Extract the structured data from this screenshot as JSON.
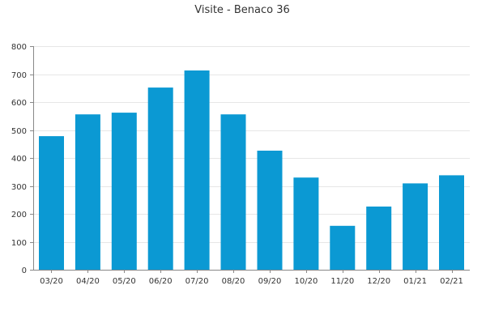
{
  "chart_data": {
    "type": "bar",
    "title": "Visite - Benaco 36",
    "xlabel": "",
    "ylabel": "",
    "categories": [
      "03/20",
      "04/20",
      "05/20",
      "06/20",
      "07/20",
      "08/20",
      "09/20",
      "10/20",
      "11/20",
      "12/20",
      "01/21",
      "02/21"
    ],
    "values": [
      478,
      556,
      562,
      652,
      713,
      556,
      426,
      330,
      157,
      226,
      309,
      338
    ],
    "ylim": [
      0,
      800
    ],
    "yticks": [
      0,
      100,
      200,
      300,
      400,
      500,
      600,
      700,
      800
    ],
    "grid": true,
    "legend": "none",
    "colors": {
      "bar": "#0b99d3"
    }
  }
}
